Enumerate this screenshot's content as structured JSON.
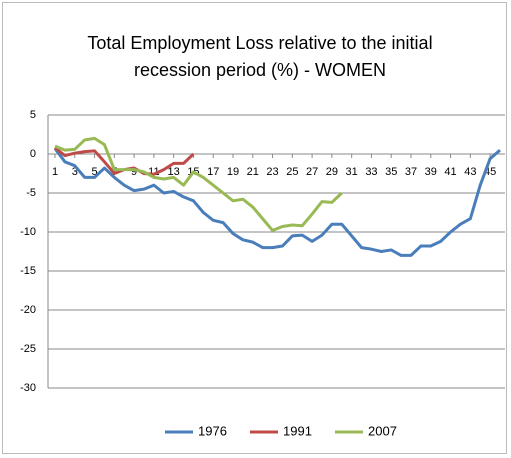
{
  "chart_data": {
    "type": "line",
    "title": "Total Employment Loss relative to the initial recession period (%) - WOMEN",
    "x": [
      1,
      2,
      3,
      4,
      5,
      6,
      7,
      8,
      9,
      10,
      11,
      12,
      13,
      14,
      15,
      16,
      17,
      18,
      19,
      20,
      21,
      22,
      23,
      24,
      25,
      26,
      27,
      28,
      29,
      30,
      31,
      32,
      33,
      34,
      35,
      36,
      37,
      38,
      39,
      40,
      41,
      42,
      43,
      44,
      45,
      46
    ],
    "xlim": [
      1,
      46
    ],
    "xticks": [
      1,
      3,
      5,
      7,
      9,
      11,
      13,
      15,
      17,
      19,
      21,
      23,
      25,
      27,
      29,
      31,
      33,
      35,
      37,
      39,
      41,
      43,
      45
    ],
    "ylim": [
      -30,
      5
    ],
    "yticks": [
      5,
      0,
      -5,
      -10,
      -15,
      -20,
      -25,
      -30
    ],
    "grid": true,
    "legend": "bottom",
    "series": [
      {
        "name": "1976",
        "color": "#4a7ebb",
        "values": [
          0.7,
          -1,
          -1.5,
          -3,
          -3,
          -1.8,
          -3,
          -4,
          -4.7,
          -4.5,
          -4,
          -5,
          -4.8,
          -5.5,
          -6,
          -7.5,
          -8.5,
          -8.8,
          -10.2,
          -11,
          -11.3,
          -12,
          -12,
          -11.8,
          -10.5,
          -10.4,
          -11.2,
          -10.4,
          -9,
          -9,
          -10.5,
          -12,
          -12.2,
          -12.5,
          -12.3,
          -13,
          -13,
          -11.8,
          -11.8,
          -11.2,
          -10,
          -9,
          -8.3,
          -4,
          -0.6,
          0.5
        ]
      },
      {
        "name": "1991",
        "color": "#be4b48",
        "values": [
          0.8,
          -0.2,
          0.1,
          0.3,
          0.4,
          -1,
          -2.5,
          -2,
          -1.8,
          -2.5,
          -2.6,
          -2,
          -1.2,
          -1.2,
          0,
          null,
          null,
          null,
          null,
          null,
          null,
          null,
          null,
          null,
          null,
          null,
          null,
          null,
          null,
          null,
          null,
          null,
          null,
          null,
          null,
          null,
          null,
          null,
          null,
          null,
          null,
          null,
          null,
          null,
          null,
          null
        ]
      },
      {
        "name": "2007",
        "color": "#98b954",
        "values": [
          1,
          0.5,
          0.6,
          1.8,
          2,
          1.2,
          -2,
          -2,
          -2,
          -2.3,
          -3,
          -3.2,
          -3,
          -4,
          -2.3,
          -3,
          -4,
          -5,
          -6,
          -5.8,
          -6.8,
          -8.3,
          -9.8,
          -9.3,
          -9.1,
          -9.2,
          -7.7,
          -6.1,
          -6.2,
          -5,
          null,
          null,
          null,
          null,
          null,
          null,
          null,
          null,
          null,
          null,
          null,
          null,
          null,
          null,
          null,
          null
        ]
      }
    ]
  }
}
